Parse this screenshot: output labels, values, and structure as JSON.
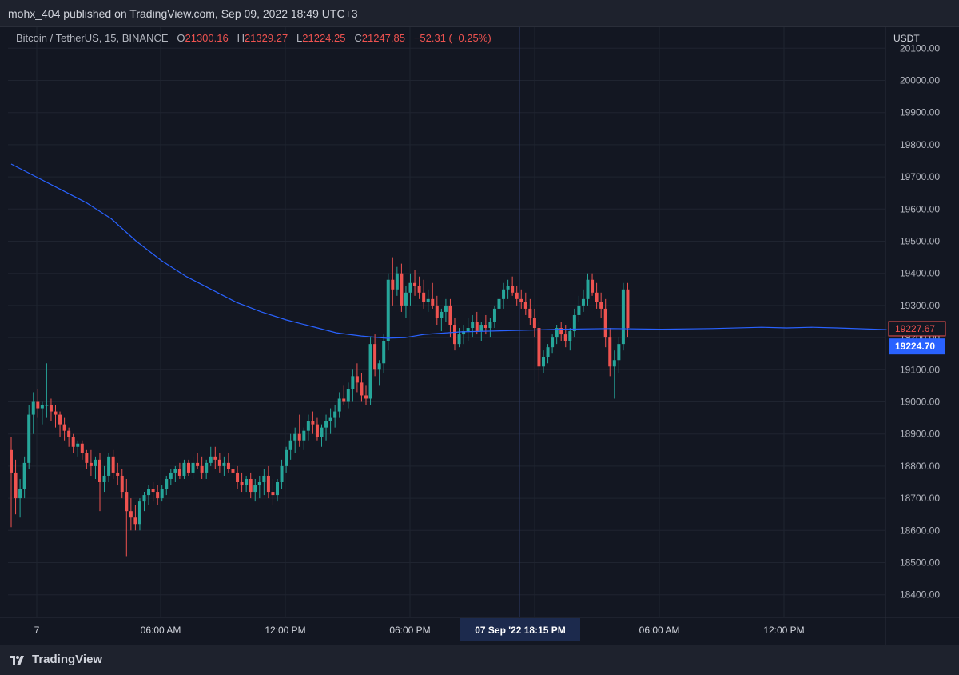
{
  "header": {
    "publish_line": "mohx_404 published on TradingView.com, Sep 09, 2022 18:49 UTC+3"
  },
  "legend": {
    "symbol": "Bitcoin / TetherUS, 15, BINANCE",
    "open_key": "O",
    "open": "21300.16",
    "high_key": "H",
    "high": "21329.27",
    "low_key": "L",
    "low": "21224.25",
    "close_key": "C",
    "close": "21247.85",
    "change": "−52.31 (−0.25%)"
  },
  "footer": {
    "brand": "TradingView"
  },
  "colors": {
    "background": "#131722",
    "up": "#26a69a",
    "down": "#ef5350",
    "ma": "#2962ff",
    "grid": "#1f2430"
  },
  "chart_data": {
    "type": "candlestick",
    "currency": "USDT",
    "ylim": [
      18300,
      20100
    ],
    "y_ticks": [
      "20100.00",
      "20000.00",
      "19900.00",
      "19800.00",
      "19700.00",
      "19600.00",
      "19500.00",
      "19400.00",
      "19300.00",
      "19200.00",
      "19100.00",
      "19000.00",
      "18900.00",
      "18800.00",
      "18700.00",
      "18600.00",
      "18500.00",
      "18400.00"
    ],
    "x_ticks": [
      "7",
      "06:00 AM",
      "12:00 PM",
      "06:00 PM",
      "06:00 AM",
      "12:00 PM"
    ],
    "crosshair_x_label": "07 Sep '22   18:15 PM",
    "last_price_label": "19227.67",
    "ma_value_label": "19224.70",
    "ohlc": [
      [
        18850,
        18890,
        18610,
        18780
      ],
      [
        18780,
        18820,
        18650,
        18700
      ],
      [
        18700,
        18760,
        18640,
        18730
      ],
      [
        18730,
        18830,
        18700,
        18810
      ],
      [
        18810,
        18990,
        18790,
        18960
      ],
      [
        18960,
        19030,
        18900,
        19000
      ],
      [
        19000,
        19040,
        18950,
        18980
      ],
      [
        18980,
        19000,
        18930,
        18990
      ],
      [
        18990,
        19120,
        18950,
        18990
      ],
      [
        18990,
        19010,
        18940,
        18970
      ],
      [
        18970,
        18990,
        18920,
        18960
      ],
      [
        18960,
        18970,
        18890,
        18930
      ],
      [
        18930,
        18950,
        18880,
        18910
      ],
      [
        18910,
        18920,
        18860,
        18890
      ],
      [
        18890,
        18900,
        18840,
        18860
      ],
      [
        18860,
        18880,
        18830,
        18870
      ],
      [
        18870,
        18880,
        18820,
        18840
      ],
      [
        18840,
        18850,
        18790,
        18810
      ],
      [
        18810,
        18850,
        18770,
        18800
      ],
      [
        18800,
        18830,
        18760,
        18820
      ],
      [
        18820,
        18840,
        18660,
        18750
      ],
      [
        18750,
        18800,
        18720,
        18770
      ],
      [
        18770,
        18840,
        18750,
        18830
      ],
      [
        18830,
        18850,
        18760,
        18780
      ],
      [
        18780,
        18810,
        18740,
        18770
      ],
      [
        18770,
        18790,
        18700,
        18720
      ],
      [
        18720,
        18760,
        18520,
        18660
      ],
      [
        18660,
        18700,
        18600,
        18640
      ],
      [
        18640,
        18680,
        18600,
        18620
      ],
      [
        18620,
        18700,
        18600,
        18690
      ],
      [
        18690,
        18720,
        18660,
        18710
      ],
      [
        18710,
        18740,
        18680,
        18730
      ],
      [
        18730,
        18750,
        18690,
        18720
      ],
      [
        18720,
        18740,
        18680,
        18700
      ],
      [
        18700,
        18740,
        18690,
        18730
      ],
      [
        18730,
        18770,
        18710,
        18760
      ],
      [
        18760,
        18790,
        18740,
        18780
      ],
      [
        18780,
        18800,
        18750,
        18790
      ],
      [
        18790,
        18810,
        18760,
        18770
      ],
      [
        18770,
        18820,
        18760,
        18810
      ],
      [
        18810,
        18820,
        18770,
        18780
      ],
      [
        18780,
        18830,
        18760,
        18810
      ],
      [
        18810,
        18840,
        18790,
        18800
      ],
      [
        18800,
        18830,
        18760,
        18780
      ],
      [
        18780,
        18820,
        18760,
        18810
      ],
      [
        18810,
        18860,
        18800,
        18830
      ],
      [
        18830,
        18860,
        18790,
        18820
      ],
      [
        18820,
        18840,
        18780,
        18800
      ],
      [
        18800,
        18830,
        18770,
        18810
      ],
      [
        18810,
        18840,
        18780,
        18790
      ],
      [
        18790,
        18810,
        18760,
        18780
      ],
      [
        18780,
        18800,
        18730,
        18750
      ],
      [
        18750,
        18780,
        18720,
        18740
      ],
      [
        18740,
        18770,
        18720,
        18760
      ],
      [
        18760,
        18780,
        18700,
        18720
      ],
      [
        18720,
        18760,
        18690,
        18740
      ],
      [
        18740,
        18770,
        18700,
        18750
      ],
      [
        18750,
        18790,
        18710,
        18770
      ],
      [
        18770,
        18800,
        18700,
        18720
      ],
      [
        18720,
        18760,
        18680,
        18710
      ],
      [
        18710,
        18760,
        18690,
        18750
      ],
      [
        18750,
        18820,
        18730,
        18800
      ],
      [
        18800,
        18860,
        18780,
        18850
      ],
      [
        18850,
        18900,
        18820,
        18880
      ],
      [
        18880,
        18920,
        18840,
        18900
      ],
      [
        18900,
        18960,
        18860,
        18880
      ],
      [
        18880,
        18920,
        18850,
        18910
      ],
      [
        18910,
        18960,
        18880,
        18940
      ],
      [
        18940,
        18970,
        18900,
        18930
      ],
      [
        18930,
        18950,
        18880,
        18890
      ],
      [
        18890,
        18930,
        18860,
        18920
      ],
      [
        18920,
        18960,
        18880,
        18940
      ],
      [
        18940,
        18980,
        18900,
        18950
      ],
      [
        18950,
        18990,
        18920,
        18970
      ],
      [
        18970,
        19030,
        18950,
        19010
      ],
      [
        19010,
        19050,
        18990,
        19000
      ],
      [
        19000,
        19060,
        18980,
        19040
      ],
      [
        19040,
        19100,
        19000,
        19080
      ],
      [
        19080,
        19120,
        19030,
        19060
      ],
      [
        19060,
        19090,
        19000,
        19020
      ],
      [
        19020,
        19050,
        18990,
        19010
      ],
      [
        19010,
        19200,
        18990,
        19180
      ],
      [
        19180,
        19210,
        19080,
        19100
      ],
      [
        19100,
        19130,
        19050,
        19120
      ],
      [
        19120,
        19210,
        19090,
        19190
      ],
      [
        19190,
        19400,
        19160,
        19380
      ],
      [
        19380,
        19450,
        19300,
        19350
      ],
      [
        19350,
        19420,
        19330,
        19400
      ],
      [
        19400,
        19430,
        19280,
        19300
      ],
      [
        19300,
        19360,
        19260,
        19340
      ],
      [
        19340,
        19400,
        19300,
        19370
      ],
      [
        19370,
        19410,
        19330,
        19360
      ],
      [
        19360,
        19390,
        19320,
        19340
      ],
      [
        19340,
        19380,
        19290,
        19310
      ],
      [
        19310,
        19350,
        19280,
        19320
      ],
      [
        19320,
        19370,
        19290,
        19300
      ],
      [
        19300,
        19330,
        19240,
        19260
      ],
      [
        19260,
        19290,
        19220,
        19280
      ],
      [
        19280,
        19320,
        19250,
        19300
      ],
      [
        19300,
        19320,
        19200,
        19240
      ],
      [
        19240,
        19260,
        19160,
        19180
      ],
      [
        19180,
        19230,
        19170,
        19210
      ],
      [
        19210,
        19240,
        19180,
        19220
      ],
      [
        19220,
        19260,
        19190,
        19230
      ],
      [
        19230,
        19270,
        19200,
        19250
      ],
      [
        19250,
        19280,
        19210,
        19220
      ],
      [
        19220,
        19250,
        19190,
        19240
      ],
      [
        19240,
        19270,
        19210,
        19230
      ],
      [
        19230,
        19260,
        19200,
        19250
      ],
      [
        19250,
        19300,
        19230,
        19290
      ],
      [
        19290,
        19340,
        19270,
        19320
      ],
      [
        19320,
        19370,
        19290,
        19350
      ],
      [
        19350,
        19380,
        19320,
        19360
      ],
      [
        19360,
        19390,
        19330,
        19340
      ],
      [
        19340,
        19360,
        19300,
        19320
      ],
      [
        19320,
        19350,
        19290,
        19310
      ],
      [
        19310,
        19340,
        19270,
        19290
      ],
      [
        19290,
        19320,
        19240,
        19260
      ],
      [
        19260,
        19290,
        19200,
        19230
      ],
      [
        19230,
        19250,
        19060,
        19110
      ],
      [
        19110,
        19160,
        19090,
        19140
      ],
      [
        19140,
        19180,
        19120,
        19170
      ],
      [
        19170,
        19210,
        19150,
        19200
      ],
      [
        19200,
        19240,
        19180,
        19230
      ],
      [
        19230,
        19250,
        19190,
        19210
      ],
      [
        19210,
        19240,
        19170,
        19190
      ],
      [
        19190,
        19230,
        19160,
        19220
      ],
      [
        19220,
        19290,
        19200,
        19270
      ],
      [
        19270,
        19330,
        19250,
        19300
      ],
      [
        19300,
        19350,
        19280,
        19320
      ],
      [
        19320,
        19400,
        19300,
        19380
      ],
      [
        19380,
        19400,
        19330,
        19340
      ],
      [
        19340,
        19370,
        19290,
        19310
      ],
      [
        19310,
        19340,
        19260,
        19290
      ],
      [
        19290,
        19320,
        19170,
        19200
      ],
      [
        19200,
        19230,
        19080,
        19110
      ],
      [
        19110,
        19160,
        19010,
        19130
      ],
      [
        19130,
        19200,
        19090,
        19180
      ],
      [
        19180,
        19370,
        19160,
        19350
      ],
      [
        19350,
        19370,
        19200,
        19230
      ]
    ],
    "moving_average": [
      [
        0,
        19740
      ],
      [
        20,
        19700
      ],
      [
        40,
        19660
      ],
      [
        60,
        19620
      ],
      [
        80,
        19570
      ],
      [
        100,
        19500
      ],
      [
        120,
        19440
      ],
      [
        140,
        19390
      ],
      [
        160,
        19350
      ],
      [
        180,
        19310
      ],
      [
        200,
        19280
      ],
      [
        220,
        19255
      ],
      [
        240,
        19235
      ],
      [
        260,
        19215
      ],
      [
        280,
        19205
      ],
      [
        300,
        19198
      ],
      [
        315,
        19200
      ],
      [
        330,
        19210
      ],
      [
        360,
        19218
      ],
      [
        400,
        19222
      ],
      [
        440,
        19226
      ],
      [
        480,
        19228
      ],
      [
        520,
        19226
      ],
      [
        560,
        19228
      ],
      [
        600,
        19232
      ],
      [
        620,
        19230
      ],
      [
        640,
        19232
      ],
      [
        660,
        19230
      ],
      [
        700,
        19225
      ]
    ]
  }
}
